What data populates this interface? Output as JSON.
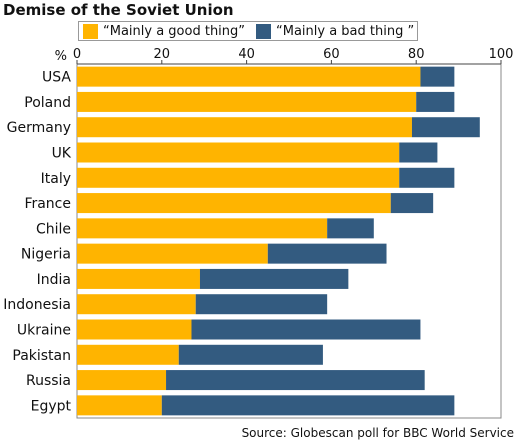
{
  "chart_data": {
    "type": "bar",
    "orientation": "horizontal",
    "stacked": true,
    "title": "Demise of the Soviet Union",
    "axis_unit_label": "%",
    "xlim": [
      0,
      100
    ],
    "x_ticks": [
      "0",
      "20",
      "40",
      "60",
      "80",
      "100"
    ],
    "grid": false,
    "legend_position": "top",
    "categories": [
      "USA",
      "Poland",
      "Germany",
      "UK",
      "Italy",
      "France",
      "Chile",
      "Nigeria",
      "India",
      "Indonesia",
      "Ukraine",
      "Pakistan",
      "Russia",
      "Egypt"
    ],
    "series": [
      {
        "name": "“Mainly a good thing”",
        "color": "#ffb400",
        "values": [
          81,
          80,
          79,
          76,
          76,
          74,
          59,
          45,
          29,
          28,
          27,
          24,
          21,
          20
        ]
      },
      {
        "name": "“Mainly a bad thing ”",
        "color": "#335b80",
        "values": [
          8,
          9,
          16,
          9,
          13,
          10,
          11,
          28,
          35,
          31,
          54,
          34,
          61,
          69
        ]
      }
    ],
    "source": "Source: Globescan poll for BBC World Service"
  }
}
